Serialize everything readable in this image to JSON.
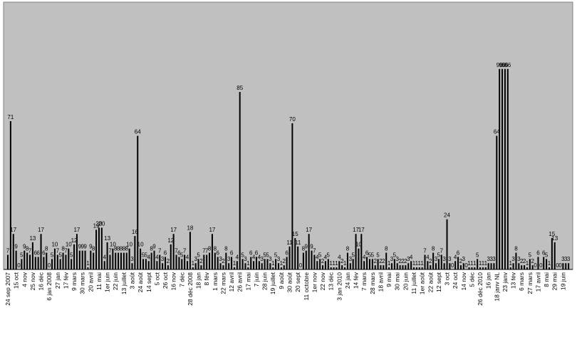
{
  "chart_data": {
    "type": "bar",
    "color": "#000000",
    "background": "#c0c0c0",
    "ylim": [
      0,
      128
    ],
    "values": [
      7,
      71,
      17,
      9,
      0,
      5,
      9,
      8,
      7,
      13,
      6,
      6,
      17,
      6,
      8,
      0,
      5,
      10,
      7,
      5,
      8,
      7,
      10,
      5,
      12,
      17,
      9,
      9,
      9,
      1,
      9,
      8,
      19,
      20,
      20,
      4,
      13,
      7,
      10,
      8,
      8,
      8,
      8,
      8,
      10,
      3,
      16,
      64,
      10,
      5,
      5,
      4,
      8,
      9,
      4,
      7,
      3,
      6,
      2,
      12,
      17,
      7,
      6,
      5,
      7,
      4,
      18,
      1,
      3,
      5,
      2,
      7,
      7,
      8,
      17,
      8,
      6,
      3,
      2,
      8,
      3,
      6,
      1,
      4,
      85,
      5,
      3,
      1,
      6,
      4,
      6,
      4,
      3,
      5,
      5,
      3,
      1,
      5,
      3,
      1,
      2,
      6,
      11,
      70,
      15,
      11,
      0,
      8,
      9,
      17,
      9,
      7,
      4,
      5,
      2,
      4,
      5,
      1,
      1,
      1,
      4,
      2,
      1,
      8,
      3,
      5,
      17,
      10,
      17,
      4,
      6,
      5,
      5,
      2,
      5,
      2,
      2,
      8,
      1,
      3,
      5,
      3,
      2,
      2,
      2,
      3,
      4,
      1,
      1,
      1,
      1,
      7,
      4,
      2,
      8,
      3,
      5,
      7,
      3,
      24,
      3,
      0,
      4,
      6,
      2,
      3,
      0,
      1,
      1,
      1,
      5,
      1,
      1,
      1,
      3,
      3,
      3,
      64,
      96,
      96,
      96,
      96,
      1,
      3,
      8,
      3,
      2,
      2,
      1,
      5,
      2,
      0,
      6,
      0,
      6,
      5,
      1,
      15,
      13,
      0,
      0,
      3,
      3,
      3
    ],
    "categories": [
      "24 sep 2007",
      null,
      null,
      "15 oct",
      null,
      null,
      "4 nov",
      null,
      null,
      "25 nov",
      null,
      null,
      "16 déc",
      null,
      null,
      "6 jan 2008",
      null,
      null,
      "27 jan",
      null,
      null,
      "17 fév",
      null,
      null,
      "9 mars",
      null,
      null,
      "30 mars",
      null,
      null,
      "20 avril",
      null,
      null,
      "11 mai",
      null,
      null,
      "1er juin",
      null,
      null,
      "22 juin",
      null,
      null,
      "13 juillet",
      null,
      null,
      "3 août",
      null,
      null,
      "24 août",
      null,
      null,
      "14 sept",
      null,
      null,
      "5 oct",
      null,
      null,
      "26 oct",
      null,
      null,
      "16 nov",
      null,
      null,
      "7 déc",
      null,
      null,
      "28 déc 2008",
      null,
      null,
      "18 jan",
      null,
      null,
      "8 fév",
      null,
      null,
      "1 mars",
      null,
      null,
      "22 mars",
      null,
      null,
      "12 avril",
      null,
      null,
      "26 avril",
      null,
      null,
      "17 mai",
      null,
      null,
      "7 juin",
      null,
      null,
      "28 juin",
      null,
      null,
      "19 juillet",
      null,
      null,
      "9 août",
      null,
      null,
      "30 août",
      null,
      null,
      "20 sept",
      null,
      null,
      "11 octobre",
      null,
      null,
      "1er nov",
      null,
      null,
      "22 nov",
      null,
      null,
      "13 déc",
      null,
      null,
      "3 jan 2010",
      null,
      null,
      "24 jan",
      null,
      null,
      "14 fév",
      null,
      null,
      "7 mars",
      null,
      null,
      "28 mars",
      null,
      null,
      "18 avril",
      null,
      null,
      "9 mai",
      null,
      null,
      "30 mai",
      null,
      null,
      "20 juin",
      null,
      null,
      "11 juillet",
      null,
      null,
      "1er août",
      null,
      null,
      "22 août",
      null,
      null,
      "12 sept",
      null,
      null,
      "3 oct",
      null,
      null,
      "24 oct",
      null,
      null,
      "14 nov",
      null,
      null,
      "5 déc",
      null,
      null,
      "26 déc 2010",
      null,
      null,
      "16 jan",
      null,
      null,
      "18 janv NL",
      null,
      null,
      "23 janv",
      null,
      null,
      "13 fév",
      null,
      null,
      "6 mars",
      null,
      null,
      "27 mars",
      null,
      null,
      "17 avril",
      null,
      null,
      "8 mai",
      null,
      null,
      "29 mai",
      null,
      null,
      "19 juin",
      null,
      null
    ]
  }
}
